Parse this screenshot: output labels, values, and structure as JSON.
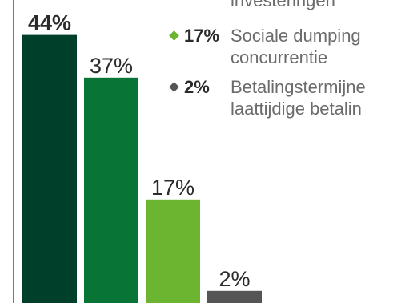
{
  "chart_data": {
    "type": "bar",
    "categories": [
      "",
      "",
      "",
      ""
    ],
    "values": [
      44,
      37,
      17,
      2
    ],
    "value_labels": [
      "44%",
      "37%",
      "17%",
      "2%"
    ],
    "colors": [
      "#003f2a",
      "#087537",
      "#6bb531",
      "#555555"
    ],
    "ylim": [
      0,
      50
    ],
    "grid": false,
    "legend_position": "right",
    "legend": [
      {
        "pct": "",
        "color": "#003f2a",
        "lines": [
          "investeringen"
        ],
        "visible_marker": false
      },
      {
        "pct": "17%",
        "color": "#6bb531",
        "lines": [
          "Sociale dumping",
          "concurrentie"
        ],
        "visible_marker": true
      },
      {
        "pct": "2%",
        "color": "#555555",
        "lines": [
          "Betalingstermijne",
          "laattijdige betalin"
        ],
        "visible_marker": true
      }
    ]
  }
}
